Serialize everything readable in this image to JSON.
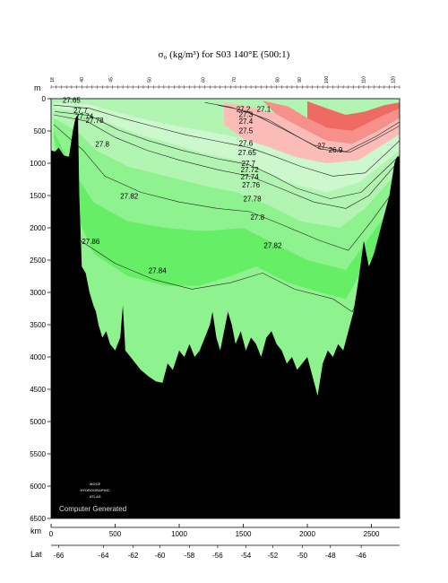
{
  "chart_data": {
    "type": "area",
    "title": "σ₀ (kg/m³) for S03 140°E (500:1)",
    "y_unit_label": "m",
    "x_unit_label": "km",
    "lat_axis_label": "Lat",
    "ylim": [
      0,
      6500
    ],
    "xlim": [
      0,
      2720
    ],
    "y_ticks": [
      "0",
      "500",
      "1000",
      "1500",
      "2000",
      "2500",
      "3000",
      "3500",
      "4000",
      "4500",
      "5000",
      "5500",
      "6000",
      "6500"
    ],
    "x_ticks": [
      "0",
      "500",
      "1000",
      "1500",
      "2000",
      "2500"
    ],
    "lat_ticks": [
      {
        "km": 60,
        "label": "-66"
      },
      {
        "km": 410,
        "label": "-64"
      },
      {
        "km": 640,
        "label": "-62"
      },
      {
        "km": 850,
        "label": "-60"
      },
      {
        "km": 1080,
        "label": "-58"
      },
      {
        "km": 1300,
        "label": "-56"
      },
      {
        "km": 1520,
        "label": "-54"
      },
      {
        "km": 1730,
        "label": "-52"
      },
      {
        "km": 1960,
        "label": "-50"
      },
      {
        "km": 2180,
        "label": "-48"
      },
      {
        "km": 2420,
        "label": "-46"
      }
    ],
    "station_labels": [
      "18",
      "40",
      "45",
      "50",
      "60",
      "70",
      "80",
      "90",
      "100",
      "110",
      "120"
    ],
    "station_km": [
      20,
      250,
      480,
      780,
      1200,
      1440,
      1780,
      1950,
      2160,
      2450,
      2680
    ],
    "contour_levels": [
      26.9,
      27.1,
      27.2,
      27.3,
      27.4,
      27.5,
      27.6,
      27.65,
      27.7,
      27.72,
      27.74,
      27.76,
      27.78,
      27.8,
      27.82,
      27.84,
      27.86
    ],
    "contour_labels": [
      {
        "text": "27.2",
        "km": 1500,
        "depth": 160
      },
      {
        "text": "27.1",
        "km": 1660,
        "depth": 160
      },
      {
        "text": "27.3",
        "km": 1520,
        "depth": 240
      },
      {
        "text": "27.4",
        "km": 1520,
        "depth": 350
      },
      {
        "text": "27.5",
        "km": 1520,
        "depth": 490
      },
      {
        "text": "26.9",
        "km": 2220,
        "depth": 790
      },
      {
        "text": "27",
        "km": 2110,
        "depth": 730
      },
      {
        "text": "27.6",
        "km": 1520,
        "depth": 690
      },
      {
        "text": "27.65",
        "km": 1530,
        "depth": 830
      },
      {
        "text": "27.7",
        "km": 1540,
        "depth": 1000
      },
      {
        "text": "27.72",
        "km": 1550,
        "depth": 1100
      },
      {
        "text": "27.74",
        "km": 1550,
        "depth": 1210
      },
      {
        "text": "27.76",
        "km": 1560,
        "depth": 1330
      },
      {
        "text": "27.78",
        "km": 1570,
        "depth": 1550
      },
      {
        "text": "27.8",
        "km": 1610,
        "depth": 1830
      },
      {
        "text": "27.82",
        "km": 1730,
        "depth": 2270
      },
      {
        "text": "27.84",
        "km": 830,
        "depth": 2660
      },
      {
        "text": "27.86",
        "km": 310,
        "depth": 2210
      },
      {
        "text": "27.82",
        "km": 610,
        "depth": 1510
      },
      {
        "text": "27.8",
        "km": 400,
        "depth": 700
      },
      {
        "text": "27.78",
        "km": 340,
        "depth": 330
      },
      {
        "text": "27.65",
        "km": 160,
        "depth": 20
      },
      {
        "text": "27.7",
        "km": 230,
        "depth": 180
      },
      {
        "text": "27.74",
        "km": 260,
        "depth": 270
      }
    ],
    "grid": false
  },
  "watermark": {
    "line1": "WOCE",
    "line2": "HYDROGRAPHIC",
    "line3": "ATLAS",
    "computer_generated": "Computer Generated"
  },
  "colors": {
    "bottom_fill": "#000000",
    "light_red": "#fbbcb8",
    "mid_red": "#f7908a",
    "dark_red": "#f06a64",
    "pale_green": "#cdf7cd",
    "light_green": "#b2f5b2",
    "mid_green": "#8ef28e",
    "green": "#66ee66",
    "bright_green": "#00e600"
  }
}
